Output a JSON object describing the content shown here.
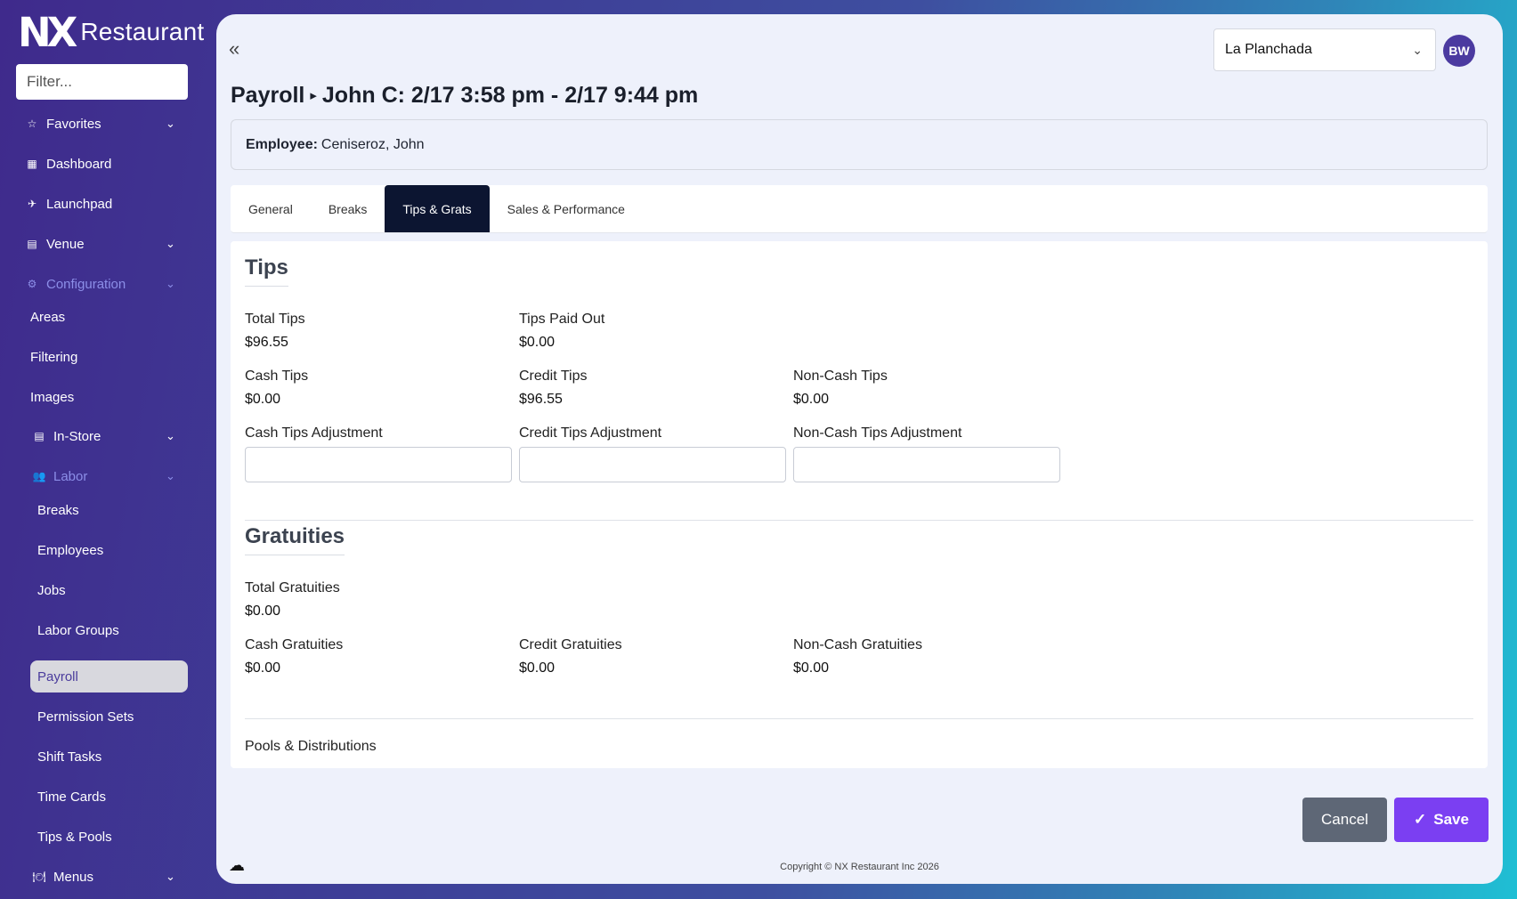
{
  "app": {
    "logo_mark": "NX",
    "logo_word": "Restaurant"
  },
  "sidebar": {
    "filter_placeholder": "Filter...",
    "items": [
      {
        "label": "Favorites",
        "icon": "☆",
        "chevron": "⌄"
      },
      {
        "label": "Dashboard",
        "icon": "▦"
      },
      {
        "label": "Launchpad",
        "icon": "✈"
      },
      {
        "label": "Venue",
        "icon": "▤",
        "chevron": "⌄"
      },
      {
        "label": "Configuration",
        "icon": "⚙",
        "chevron": "⌄"
      },
      {
        "label": "Areas"
      },
      {
        "label": "Filtering"
      },
      {
        "label": "Images"
      },
      {
        "label": "In-Store",
        "icon": "▤",
        "chevron": "⌄"
      },
      {
        "label": "Labor",
        "icon": "👥",
        "chevron": "⌄"
      },
      {
        "label": "Breaks"
      },
      {
        "label": "Employees"
      },
      {
        "label": "Jobs"
      },
      {
        "label": "Labor Groups"
      },
      {
        "label": "Payroll"
      },
      {
        "label": "Permission Sets"
      },
      {
        "label": "Shift Tasks"
      },
      {
        "label": "Time Cards"
      },
      {
        "label": "Tips & Pools"
      },
      {
        "label": "Menus",
        "icon": "🍽",
        "chevron": "⌄"
      }
    ]
  },
  "header": {
    "collapse_icon": "«",
    "venue": "La Planchada",
    "avatar": "BW",
    "title_section": "Payroll",
    "title_separator": "▸",
    "title_detail": "John C: 2/17 3:58 pm - 2/17 9:44 pm"
  },
  "employee": {
    "label": "Employee:",
    "value": "Ceniseroz, John"
  },
  "tabs": [
    "General",
    "Breaks",
    "Tips & Grats",
    "Sales & Performance"
  ],
  "tips": {
    "title": "Tips",
    "total_tips_label": "Total Tips",
    "total_tips": "$96.55",
    "tips_paid_out_label": "Tips Paid Out",
    "tips_paid_out": "$0.00",
    "cash_tips_label": "Cash Tips",
    "cash_tips": "$0.00",
    "credit_tips_label": "Credit Tips",
    "credit_tips": "$96.55",
    "noncash_tips_label": "Non-Cash Tips",
    "noncash_tips": "$0.00",
    "cash_adj_label": "Cash Tips Adjustment",
    "credit_adj_label": "Credit Tips Adjustment",
    "noncash_adj_label": "Non-Cash Tips Adjustment"
  },
  "gratuities": {
    "title": "Gratuities",
    "total_label": "Total Gratuities",
    "total": "$0.00",
    "cash_label": "Cash Gratuities",
    "cash": "$0.00",
    "credit_label": "Credit Gratuities",
    "credit": "$0.00",
    "noncash_label": "Non-Cash Gratuities",
    "noncash": "$0.00"
  },
  "pools_label": "Pools & Distributions",
  "actions": {
    "cancel": "Cancel",
    "save": "Save",
    "save_icon": "✓"
  },
  "footer": {
    "cloud_icon": "☁",
    "copyright": "Copyright © NX Restaurant Inc 2026"
  }
}
